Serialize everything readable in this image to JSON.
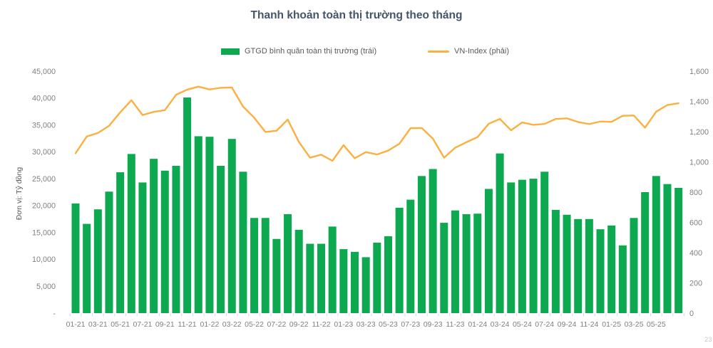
{
  "title": "Thanh khoản toàn thị trường theo tháng",
  "legend": {
    "bar_label": "GTGD bình quân toàn thị trường (trái)",
    "line_label": "VN-Index (phải)"
  },
  "left_axis": {
    "title": "Đơn vị: Tỷ đồng",
    "ticks": [
      "45,000",
      "40,000",
      "35,000",
      "30,000",
      "25,000",
      "20,000",
      "15,000",
      "10,000",
      "5,000",
      "-"
    ]
  },
  "right_axis": {
    "ticks": [
      "1,600",
      "1,400",
      "1,200",
      "1,000",
      "800",
      "600",
      "400",
      "200",
      "0"
    ]
  },
  "corner_text": "23",
  "colors": {
    "bar": "#0CA950",
    "line": "#FBB040",
    "axis_text": "#7F7F7F",
    "legend_text": "#595959",
    "title_text": "#44546A",
    "tick_mark": "#D9D9D9"
  },
  "chart_data": {
    "type": "bar",
    "title": "Thanh khoản toàn thị trường theo tháng",
    "xlabel": "",
    "ylabel_left": "Đơn vị: Tỷ đồng",
    "ylabel_right": "",
    "ylim_left": [
      0,
      45000
    ],
    "ylim_right": [
      0,
      1600
    ],
    "grid": false,
    "legend_position": "top",
    "x_label_interval": 2,
    "x": [
      "01-21",
      "02-21",
      "03-21",
      "04-21",
      "05-21",
      "06-21",
      "07-21",
      "08-21",
      "09-21",
      "10-21",
      "11-21",
      "12-21",
      "01-22",
      "02-22",
      "03-22",
      "04-22",
      "05-22",
      "06-22",
      "07-22",
      "08-22",
      "09-22",
      "10-22",
      "11-22",
      "12-22",
      "01-23",
      "02-23",
      "03-23",
      "04-23",
      "05-23",
      "06-23",
      "07-23",
      "08-23",
      "09-23",
      "10-23",
      "11-23",
      "12-23",
      "01-24",
      "02-24",
      "03-24",
      "04-24",
      "05-24",
      "06-24",
      "07-24",
      "08-24",
      "09-24",
      "10-24",
      "11-24",
      "12-24",
      "01-25",
      "02-25",
      "03-25",
      "04-25",
      "05-25",
      "06-25",
      "07-25"
    ],
    "series": [
      {
        "name": "GTGD bình quân toàn thị trường (trái)",
        "type": "bar",
        "axis": "left",
        "color": "#0CA950",
        "values": [
          20400,
          16600,
          19300,
          22600,
          26200,
          29600,
          24300,
          28700,
          26500,
          27400,
          40100,
          32900,
          32800,
          27400,
          32400,
          26300,
          17700,
          17700,
          13800,
          18400,
          15500,
          12900,
          12900,
          16100,
          11900,
          11400,
          10400,
          13100,
          14300,
          19600,
          21100,
          25500,
          26800,
          16800,
          19100,
          18400,
          18500,
          23100,
          29700,
          24300,
          24800,
          25000,
          26300,
          19200,
          18300,
          17500,
          17500,
          15600,
          16300,
          12600,
          17700,
          22500,
          25500,
          24000,
          23300
        ]
      },
      {
        "name": "VN-Index (phải)",
        "type": "line",
        "axis": "right",
        "color": "#FBB040",
        "values": [
          1057,
          1168,
          1191,
          1239,
          1328,
          1408,
          1310,
          1331,
          1342,
          1444,
          1478,
          1498,
          1479,
          1490,
          1492,
          1366,
          1292,
          1198,
          1206,
          1280,
          1132,
          1028,
          1048,
          1007,
          1111,
          1024,
          1065,
          1049,
          1075,
          1120,
          1223,
          1224,
          1154,
          1028,
          1094,
          1130,
          1164,
          1252,
          1284,
          1209,
          1261,
          1245,
          1251,
          1284,
          1288,
          1264,
          1250,
          1267,
          1265,
          1305,
          1307,
          1226,
          1332,
          1376,
          1388
        ]
      }
    ]
  }
}
